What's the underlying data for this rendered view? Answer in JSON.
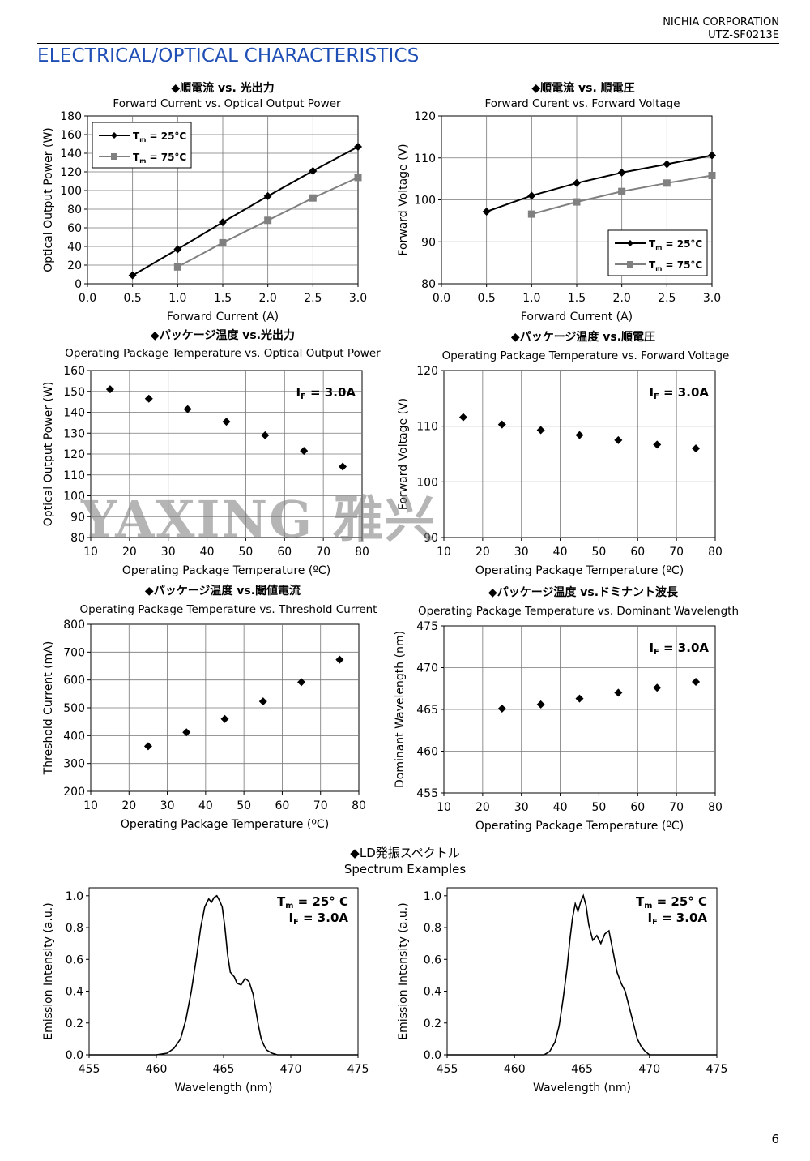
{
  "header": {
    "company": "NICHIA CORPORATION",
    "doc_id": "UTZ-SF0213E"
  },
  "section_title": "ELECTRICAL/OPTICAL CHARACTERISTICS",
  "page_number": "6",
  "watermark": "YAXING 雅兴",
  "spectrum_section": {
    "title_jp": "◆LD発振スペクトル",
    "title_en": "Spectrum Examples"
  },
  "chart_data": [
    {
      "type": "line",
      "title_jp": "◆順電流 vs. 光出力",
      "title": "Forward Current vs. Optical Output Power",
      "xlabel": "Forward Current (A)",
      "ylabel": "Optical Output Power (W)",
      "xlim": [
        0,
        3
      ],
      "ylim": [
        0,
        180
      ],
      "xticks": [
        "0.0",
        "0.5",
        "1.0",
        "1.5",
        "2.0",
        "2.5",
        "3.0"
      ],
      "yticks": [
        "0",
        "20",
        "40",
        "60",
        "80",
        "100",
        "120",
        "140",
        "160",
        "180"
      ],
      "legend": "top-left",
      "series": [
        {
          "name": "Tm = 25°C",
          "color": "#000000",
          "marker": "diamond",
          "x": [
            0.5,
            1.0,
            1.5,
            2.0,
            2.5,
            3.0
          ],
          "y": [
            9,
            37,
            66,
            94,
            121,
            147
          ]
        },
        {
          "name": "Tm = 75°C",
          "color": "#808080",
          "marker": "square",
          "x": [
            1.0,
            1.5,
            2.0,
            2.5,
            3.0
          ],
          "y": [
            18,
            44,
            68,
            92,
            114
          ]
        }
      ]
    },
    {
      "type": "line",
      "title_jp": "◆順電流 vs. 順電圧",
      "title": "Forward Curent vs. Forward Voltage",
      "xlabel": "Forward Current (A)",
      "ylabel": "Forward Voltage (V)",
      "xlim": [
        0,
        3
      ],
      "ylim": [
        80,
        120
      ],
      "xticks": [
        "0.0",
        "0.5",
        "1.0",
        "1.5",
        "2.0",
        "2.5",
        "3.0"
      ],
      "yticks": [
        "80",
        "90",
        "100",
        "110",
        "120"
      ],
      "legend": "bottom-right",
      "series": [
        {
          "name": "Tm = 25°C",
          "color": "#000000",
          "marker": "diamond",
          "x": [
            0.5,
            1.0,
            1.5,
            2.0,
            2.5,
            3.0
          ],
          "y": [
            97.2,
            101.0,
            104.0,
            106.5,
            108.5,
            110.6
          ]
        },
        {
          "name": "Tm = 75°C",
          "color": "#808080",
          "marker": "square",
          "x": [
            1.0,
            1.5,
            2.0,
            2.5,
            3.0
          ],
          "y": [
            96.6,
            99.5,
            102.0,
            104.0,
            105.8
          ]
        }
      ]
    },
    {
      "type": "scatter",
      "title_jp": "◆パッケージ温度 vs.光出力",
      "title": "Operating Package Temperature vs. Optical Output Power",
      "xlabel": "Operating Package Temperature (ºC)",
      "ylabel": "Optical Output Power (W)",
      "xlim": [
        10,
        80
      ],
      "ylim": [
        80,
        160
      ],
      "xticks": [
        "10",
        "20",
        "30",
        "40",
        "50",
        "60",
        "70",
        "80"
      ],
      "yticks": [
        "80",
        "90",
        "100",
        "110",
        "120",
        "130",
        "140",
        "150",
        "160"
      ],
      "annotation": "IF = 3.0A",
      "series": [
        {
          "color": "#000000",
          "marker": "diamond",
          "x": [
            15,
            25,
            35,
            45,
            55,
            65,
            75
          ],
          "y": [
            151,
            146.5,
            141.5,
            135.5,
            129,
            121.5,
            114
          ]
        }
      ]
    },
    {
      "type": "scatter",
      "title_jp": "◆パッケージ温度 vs.順電圧",
      "title": "Operating Package Temperature vs. Forward Voltage",
      "xlabel": "Operating Package Temperature (ºC)",
      "ylabel": "Forward Voltage (V)",
      "xlim": [
        10,
        80
      ],
      "ylim": [
        90,
        120
      ],
      "xticks": [
        "10",
        "20",
        "30",
        "40",
        "50",
        "60",
        "70",
        "80"
      ],
      "yticks": [
        "90",
        "100",
        "110",
        "120"
      ],
      "annotation": "IF = 3.0A",
      "series": [
        {
          "color": "#000000",
          "marker": "diamond",
          "x": [
            15,
            25,
            35,
            45,
            55,
            65,
            75
          ],
          "y": [
            111.6,
            110.3,
            109.3,
            108.4,
            107.5,
            106.7,
            106.0
          ]
        }
      ]
    },
    {
      "type": "scatter",
      "title_jp": "◆パッケージ温度 vs.閾値電流",
      "title": "Operating Package Temperature vs. Threshold Current",
      "xlabel": "Operating Package Temperature (ºC)",
      "ylabel": "Threshold Current (mA)",
      "xlim": [
        10,
        80
      ],
      "ylim": [
        200,
        800
      ],
      "xticks": [
        "10",
        "20",
        "30",
        "40",
        "50",
        "60",
        "70",
        "80"
      ],
      "yticks": [
        "200",
        "300",
        "400",
        "500",
        "600",
        "700",
        "800"
      ],
      "series": [
        {
          "color": "#000000",
          "marker": "diamond",
          "x": [
            25,
            35,
            45,
            55,
            65,
            75
          ],
          "y": [
            362,
            412,
            460,
            523,
            592,
            673
          ]
        }
      ]
    },
    {
      "type": "scatter",
      "title_jp": "◆パッケージ温度 vs.ドミナント波長",
      "title": "Operating Package Temperature vs. Dominant Wavelength",
      "xlabel": "Operating Package Temperature (ºC)",
      "ylabel": "Dominant Wavelength (nm)",
      "xlim": [
        10,
        80
      ],
      "ylim": [
        455,
        475
      ],
      "xticks": [
        "10",
        "20",
        "30",
        "40",
        "50",
        "60",
        "70",
        "80"
      ],
      "yticks": [
        "455",
        "460",
        "465",
        "470",
        "475"
      ],
      "annotation": "IF = 3.0A",
      "series": [
        {
          "color": "#000000",
          "marker": "diamond",
          "x": [
            25,
            35,
            45,
            55,
            65,
            75
          ],
          "y": [
            465.1,
            465.6,
            466.3,
            467.0,
            467.6,
            468.3
          ]
        }
      ]
    },
    {
      "type": "line",
      "xlabel": "Wavelength (nm)",
      "ylabel": "Emission Intensity (a.u.)",
      "xlim": [
        455,
        475
      ],
      "ylim": [
        0,
        1.05
      ],
      "xticks": [
        "455",
        "460",
        "465",
        "470",
        "475"
      ],
      "yticks": [
        "0.0",
        "0.2",
        "0.4",
        "0.6",
        "0.8",
        "1.0"
      ],
      "annotation_lines": [
        "Tm = 25° C",
        "IF = 3.0A"
      ],
      "series": [
        {
          "color": "#000000",
          "x": [
            455,
            460,
            460.8,
            461.3,
            461.8,
            462.2,
            462.6,
            463.0,
            463.3,
            463.6,
            463.9,
            464.1,
            464.3,
            464.5,
            464.7,
            464.9,
            465.1,
            465.3,
            465.5,
            465.8,
            466.0,
            466.3,
            466.6,
            466.9,
            467.2,
            467.4,
            467.6,
            467.8,
            468.0,
            468.2,
            468.4,
            468.6,
            469,
            475
          ],
          "y": [
            0,
            0,
            0.01,
            0.04,
            0.1,
            0.22,
            0.4,
            0.62,
            0.8,
            0.93,
            0.98,
            0.96,
            0.99,
            1.0,
            0.97,
            0.93,
            0.8,
            0.63,
            0.52,
            0.49,
            0.45,
            0.44,
            0.48,
            0.46,
            0.38,
            0.28,
            0.18,
            0.1,
            0.06,
            0.03,
            0.02,
            0.01,
            0,
            0
          ]
        }
      ]
    },
    {
      "type": "line",
      "xlabel": "Wavelength (nm)",
      "ylabel": "Emission Intensity (a.u.)",
      "xlim": [
        455,
        475
      ],
      "ylim": [
        0,
        1.05
      ],
      "xticks": [
        "455",
        "460",
        "465",
        "470",
        "475"
      ],
      "yticks": [
        "0.0",
        "0.2",
        "0.4",
        "0.6",
        "0.8",
        "1.0"
      ],
      "annotation_lines": [
        "Tm = 25° C",
        "IF = 3.0A"
      ],
      "series": [
        {
          "color": "#000000",
          "x": [
            455,
            462.2,
            462.6,
            463.0,
            463.3,
            463.6,
            463.9,
            464.1,
            464.3,
            464.5,
            464.7,
            464.9,
            465.1,
            465.3,
            465.5,
            465.8,
            466.1,
            466.4,
            466.7,
            467.0,
            467.3,
            467.6,
            467.9,
            468.2,
            468.5,
            468.8,
            469.1,
            469.4,
            469.7,
            470.0,
            475
          ],
          "y": [
            0,
            0,
            0.02,
            0.08,
            0.18,
            0.35,
            0.55,
            0.72,
            0.86,
            0.95,
            0.9,
            0.96,
            1.0,
            0.94,
            0.82,
            0.72,
            0.75,
            0.7,
            0.76,
            0.78,
            0.65,
            0.52,
            0.45,
            0.4,
            0.3,
            0.2,
            0.1,
            0.05,
            0.02,
            0,
            0
          ]
        }
      ]
    }
  ]
}
